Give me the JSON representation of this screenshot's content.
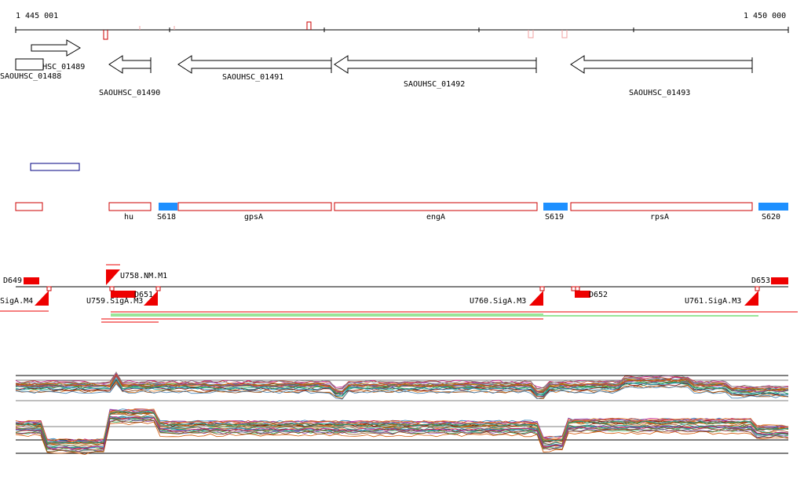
{
  "ruler": {
    "start_label": "1 445 001",
    "end_label": "1 450 000"
  },
  "genes": [
    {
      "label": "SAOUHSC_01489",
      "strand": "+"
    },
    {
      "label": "SAOUHSC_01488",
      "strand": "+"
    },
    {
      "label": "SAOUHSC_01490",
      "strand": "-"
    },
    {
      "label": "SAOUHSC_01491",
      "strand": "-"
    },
    {
      "label": "SAOUHSC_01492",
      "strand": "-"
    },
    {
      "label": "SAOUHSC_01493",
      "strand": "-"
    }
  ],
  "annotations": [
    {
      "label": "",
      "kind": "gene"
    },
    {
      "label": "hu",
      "kind": "gene"
    },
    {
      "label": "S618",
      "kind": "segment"
    },
    {
      "label": "gpsA",
      "kind": "gene"
    },
    {
      "label": "engA",
      "kind": "gene"
    },
    {
      "label": "S619",
      "kind": "segment"
    },
    {
      "label": "rpsA",
      "kind": "gene"
    },
    {
      "label": "S620",
      "kind": "segment"
    }
  ],
  "features": {
    "downshifts": [
      "D649",
      "D651",
      "D652",
      "D653"
    ],
    "upshifts": [
      "SigA.M4",
      "U758.NM.M1",
      "U759.SigA.M3",
      "U760.SigA.M3",
      "U761.SigA.M3"
    ]
  },
  "colors": {
    "gene_outline": "#000000",
    "annotation_outline": "#cc0000",
    "segment_fill": "#1e90ff",
    "feature_red": "#ee0000",
    "blue_outline": "#000080",
    "green_line": "#33cc33"
  }
}
